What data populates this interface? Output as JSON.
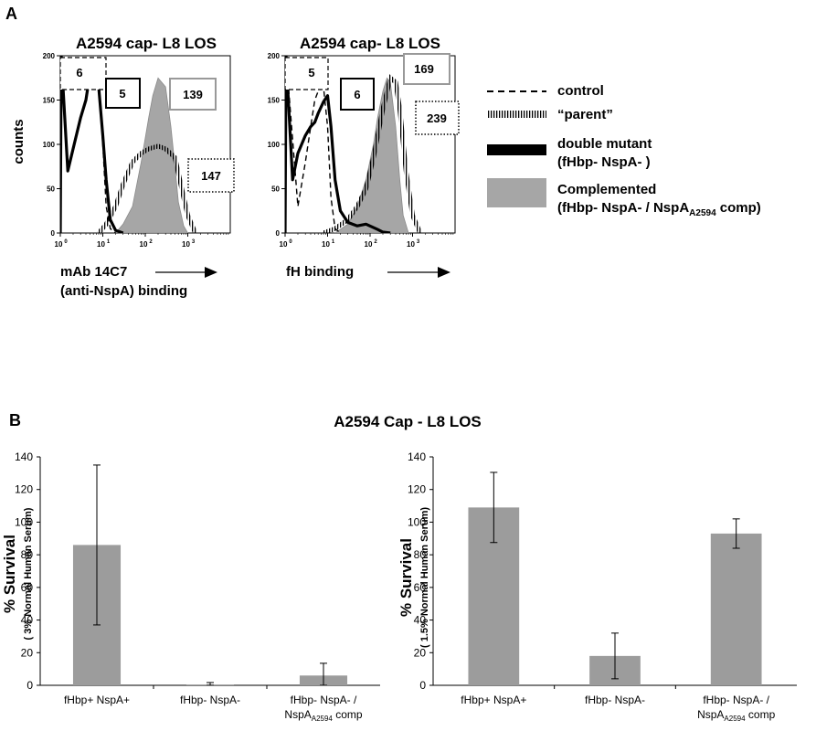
{
  "panel_labels": {
    "a": "A",
    "b": "B"
  },
  "histograms": [
    {
      "title": "A2594 cap- L8 LOS",
      "ylabel": "counts",
      "yticks": [
        "0",
        "50",
        "100",
        "150",
        "200"
      ],
      "xticks": [
        "10",
        "10",
        "10",
        "10"
      ],
      "xtick_exps": [
        "0",
        "1",
        "2",
        "3"
      ],
      "xlabel_lines": [
        "mAb 14C7",
        "(anti-NspA) binding"
      ],
      "mfi": {
        "control": "6",
        "mutant": "5",
        "complemented": "139",
        "parent": "147"
      }
    },
    {
      "title": "A2594 cap- L8 LOS",
      "yticks": [
        "0",
        "50",
        "100",
        "150",
        "200"
      ],
      "xticks": [
        "10",
        "10",
        "10",
        "10"
      ],
      "xtick_exps": [
        "0",
        "1",
        "2",
        "3"
      ],
      "xlabel_lines": [
        "fH binding"
      ],
      "mfi": {
        "control": "5",
        "mutant": "6",
        "complemented": "169",
        "parent": "239"
      }
    }
  ],
  "legend": {
    "control": "control",
    "parent": "“parent”",
    "mutant_1": "double mutant",
    "mutant_2": "(fHbp- NspA- )",
    "comp_1": "Complemented",
    "comp_2_pre": "(fHbp- NspA- / NspA",
    "comp_2_sub": "A2594",
    "comp_2_post": " comp)"
  },
  "colors": {
    "fill": "#a6a6a6",
    "bar": "#9c9c9c",
    "line": "#000000"
  },
  "chart_data": [
    {
      "type": "area",
      "title": "A2594 cap- L8 LOS",
      "xlabel": "mAb 14C7 (anti-NspA) binding",
      "ylabel": "counts",
      "xscale": "log",
      "xlim": [
        1,
        10000
      ],
      "ylim": [
        0,
        200
      ],
      "series": [
        {
          "name": "control",
          "style": "dashed",
          "mfi": 6,
          "x": [
            1,
            1.05,
            2,
            3,
            4,
            5,
            6,
            8,
            10,
            12,
            15,
            20
          ],
          "y": [
            0,
            160,
            165,
            170,
            175,
            185,
            190,
            170,
            100,
            30,
            5,
            0
          ]
        },
        {
          "name": "double mutant (fHbp- NspA- )",
          "style": "thick-solid",
          "mfi": 5,
          "x": [
            1,
            1.05,
            1.5,
            2,
            3,
            4,
            5,
            6,
            7,
            8,
            10,
            12,
            15,
            20,
            30
          ],
          "y": [
            0,
            200,
            70,
            95,
            130,
            150,
            180,
            192,
            185,
            165,
            110,
            60,
            15,
            3,
            0
          ]
        },
        {
          "name": "“parent”",
          "style": "hatched",
          "mfi": 147,
          "x": [
            8,
            12,
            20,
            30,
            50,
            80,
            120,
            200,
            300,
            500,
            800,
            1000,
            1500
          ],
          "y": [
            0,
            10,
            30,
            55,
            80,
            90,
            95,
            98,
            95,
            85,
            40,
            20,
            0
          ]
        },
        {
          "name": "Complemented (fHbp- NspA- / NspA A2594 comp)",
          "style": "gray-fill",
          "mfi": 139,
          "x": [
            20,
            30,
            50,
            80,
            120,
            150,
            200,
            300,
            400,
            500,
            600,
            800,
            1000
          ],
          "y": [
            0,
            10,
            30,
            80,
            130,
            155,
            175,
            165,
            120,
            75,
            35,
            8,
            0
          ]
        }
      ]
    },
    {
      "type": "area",
      "title": "A2594 cap- L8 LOS",
      "xlabel": "fH binding",
      "ylabel": "",
      "xscale": "log",
      "xlim": [
        1,
        10000
      ],
      "ylim": [
        0,
        200
      ],
      "series": [
        {
          "name": "control",
          "style": "dashed",
          "mfi": 5,
          "x": [
            1,
            1.05,
            2,
            3,
            4,
            5,
            6,
            8,
            10,
            12,
            15,
            20
          ],
          "y": [
            0,
            200,
            30,
            80,
            120,
            150,
            160,
            165,
            120,
            40,
            5,
            0
          ]
        },
        {
          "name": "double mutant (fHbp- NspA- )",
          "style": "thick-solid",
          "mfi": 6,
          "x": [
            1,
            1.05,
            1.5,
            2,
            3,
            4,
            5,
            6,
            8,
            10,
            12,
            15,
            20,
            30,
            50,
            80,
            150,
            200,
            300
          ],
          "y": [
            0,
            200,
            60,
            90,
            110,
            120,
            125,
            135,
            148,
            155,
            120,
            60,
            25,
            12,
            8,
            10,
            4,
            1,
            0
          ]
        },
        {
          "name": "“parent”",
          "style": "hatched",
          "mfi": 239,
          "x": [
            8,
            15,
            30,
            50,
            80,
            120,
            200,
            300,
            400,
            500,
            700,
            1000,
            1500
          ],
          "y": [
            0,
            5,
            15,
            30,
            50,
            85,
            140,
            175,
            170,
            140,
            70,
            20,
            0
          ]
        },
        {
          "name": "Complemented (fHbp- NspA- / NspA A2594 comp)",
          "style": "gray-fill",
          "mfi": 169,
          "x": [
            15,
            30,
            50,
            80,
            120,
            150,
            200,
            250,
            300,
            400,
            500,
            600,
            800
          ],
          "y": [
            0,
            10,
            30,
            60,
            100,
            130,
            160,
            175,
            170,
            120,
            60,
            20,
            0
          ]
        }
      ]
    },
    {
      "type": "bar",
      "title": "A2594 Cap - L8 LOS",
      "ylabel": "% Survival",
      "ylabel_sub": "( 3% Normal Human Serum)",
      "ylim": [
        0,
        140
      ],
      "yticks": [
        0,
        20,
        40,
        60,
        80,
        100,
        120,
        140
      ],
      "categories": [
        "fHbp+ NspA+",
        "fHbp- NspA-",
        "fHbp- NspA- / NspA A2594 comp"
      ],
      "values": [
        86,
        0.5,
        6
      ],
      "errors": [
        49,
        1.2,
        7.5
      ]
    },
    {
      "type": "bar",
      "title": "A2594 Cap - L8 LOS",
      "ylabel": "% Survival",
      "ylabel_sub": "( 1.5% Normal Human Serum)",
      "ylim": [
        0,
        140
      ],
      "yticks": [
        0,
        20,
        40,
        60,
        80,
        100,
        120,
        140
      ],
      "categories": [
        "fHbp+ NspA+",
        "fHbp- NspA-",
        "fHbp- NspA- / NspA A2594 comp"
      ],
      "values": [
        109,
        18,
        93
      ],
      "errors": [
        21.5,
        14,
        9
      ]
    }
  ],
  "bar_panel": {
    "title": "A2594 Cap - L8 LOS",
    "ylabel": "% Survival",
    "left_sub": "( 3% Normal Human Serum)",
    "right_sub": "( 1.5% Normal Human Serum)",
    "yticks": [
      "0",
      "20",
      "40",
      "60",
      "80",
      "100",
      "120",
      "140"
    ],
    "cat1": "fHbp+ NspA+",
    "cat2": "fHbp- NspA-",
    "cat3_line1": "fHbp- NspA- /",
    "cat3_line2_pre": "NspA",
    "cat3_line2_sub": "A2594",
    "cat3_line2_post": " comp"
  }
}
